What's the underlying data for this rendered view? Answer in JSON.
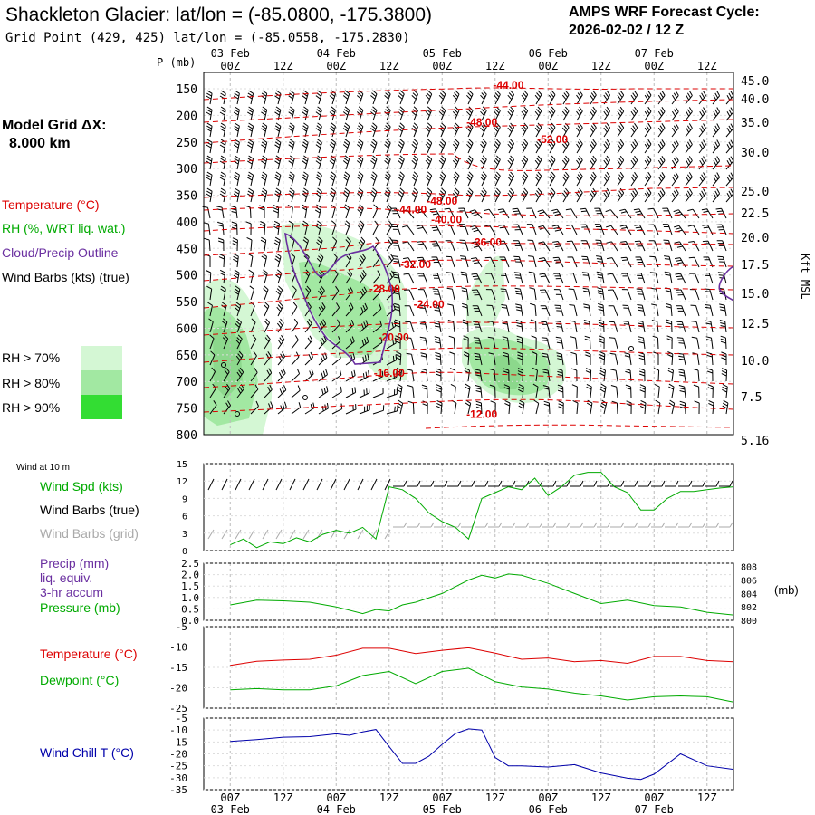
{
  "header": {
    "title": "Shackleton Glacier:  lat/lon = (-85.0800, -175.3800)",
    "grid_point": "Grid Point (429, 425) lat/lon = (-85.0558, -175.2830)",
    "cycle_line1": "AMPS WRF Forecast Cycle:",
    "cycle_line2": "2026-02-02 / 12  Z"
  },
  "time_axis": {
    "ticks": [
      "00Z",
      "12Z",
      "00Z",
      "12Z",
      "00Z",
      "12Z",
      "00Z",
      "12Z",
      "00Z",
      "12Z"
    ],
    "dates": [
      "03 Feb",
      "04 Feb",
      "05 Feb",
      "06 Feb",
      "07 Feb"
    ]
  },
  "legend": {
    "model_grid_label": "Model Grid ΔX:",
    "model_grid_value": "8.000 km",
    "temperature": "Temperature (°C)",
    "rh": "RH (%, WRT liq. wat.)",
    "cloud": "Cloud/Precip Outline",
    "barbs": "Wind Barbs (kts) (true)",
    "rh70": "RH > 70%",
    "rh80": "RH > 80%",
    "rh90": "RH > 90%",
    "colors": {
      "temp": "#dd0000",
      "rh": "#00aa00",
      "cloud": "#6a2fa0",
      "text": "#000000",
      "rh70": "#d4f7d4",
      "rh80": "#a2e8a2",
      "rh90": "#33dd33",
      "precip": "#6a2fa0",
      "windchill": "#0000aa",
      "grid_barb": "#aaaaaa"
    }
  },
  "chart_data": [
    {
      "type": "area",
      "name": "cross-section",
      "p_label": "P (mb)",
      "pressure_ticks": [
        150,
        200,
        250,
        300,
        350,
        400,
        450,
        500,
        550,
        600,
        650,
        700,
        750,
        800
      ],
      "height_label": "Kft MSL",
      "height_ticks": [
        "45.0",
        "40.0",
        "35.0",
        "30.0",
        "25.0",
        "22.5",
        "20.0",
        "17.5",
        "15.0",
        "12.5",
        "10.0",
        "7.5",
        "5.16"
      ],
      "temp_contour_labels": [
        {
          "label": "-44.00",
          "t": 63,
          "p": 143
        },
        {
          "label": "-48.00",
          "t": 57,
          "p": 213
        },
        {
          "label": "-52.00",
          "t": 73,
          "p": 245
        },
        {
          "label": "-48.00",
          "t": 48,
          "p": 361
        },
        {
          "label": "-44.00",
          "t": 41,
          "p": 377
        },
        {
          "label": "-40.00",
          "t": 49,
          "p": 396
        },
        {
          "label": "-36.00",
          "t": 58,
          "p": 438
        },
        {
          "label": "-32.00",
          "t": 42,
          "p": 480
        },
        {
          "label": "-28.00",
          "t": 35,
          "p": 526
        },
        {
          "label": "-24.00",
          "t": 45,
          "p": 555
        },
        {
          "label": "-20.00",
          "t": 37,
          "p": 617
        },
        {
          "label": "-16.00",
          "t": 36,
          "p": 684
        },
        {
          "label": "-12.00",
          "t": 57,
          "p": 762
        }
      ]
    },
    {
      "type": "line",
      "name": "wind",
      "title": "Wind at 10 m",
      "series_labels": {
        "speed": "Wind Spd (kts)",
        "barbs_true": "Wind Barbs (true)",
        "barbs_grid": "Wind Barbs (grid)"
      },
      "y_ticks": [
        0,
        3,
        6,
        9,
        12,
        15
      ],
      "ylim": [
        0,
        15
      ],
      "x": [
        0,
        3,
        6,
        9,
        12,
        15,
        18,
        21,
        24,
        27,
        30,
        33,
        36,
        39,
        42,
        45,
        48,
        51,
        54,
        57,
        60,
        63,
        66,
        69,
        72,
        75,
        78,
        81,
        84,
        87,
        90,
        93,
        96,
        99,
        102,
        105,
        108,
        111,
        114
      ],
      "wind_speed": [
        1,
        2,
        0.5,
        1.5,
        1.2,
        2.2,
        1.5,
        2.8,
        3.5,
        3,
        4,
        2,
        11,
        10.5,
        9,
        6.5,
        5,
        4,
        2,
        9,
        10,
        11,
        10.5,
        12.5,
        9.5,
        11,
        13,
        13.5,
        13.5,
        11,
        10,
        7,
        7,
        9,
        10.2,
        10.2,
        10.5,
        10.8,
        11
      ]
    },
    {
      "type": "line",
      "name": "precip-pressure",
      "series_labels": {
        "precip": "Precip (mm)",
        "liq": "liq. equiv.",
        "accum": "3-hr accum",
        "pressure": "Pressure (mb)"
      },
      "unit_label": "(mb)",
      "precip_ticks": [
        "0.0",
        "0.5",
        "1.0",
        "1.5",
        "2.0",
        "2.5"
      ],
      "pressure_ticks": [
        "800",
        "802",
        "804",
        "806",
        "808"
      ],
      "ylim_precip": [
        0,
        2.5
      ],
      "ylim_pressure": [
        800,
        808.5
      ],
      "x": [
        0,
        6,
        12,
        18,
        24,
        30,
        33,
        36,
        39,
        42,
        48,
        54,
        57,
        60,
        63,
        66,
        72,
        78,
        84,
        90,
        96,
        102,
        108,
        114
      ],
      "pressure": [
        802.3,
        803,
        802.9,
        802.7,
        802,
        801,
        801.6,
        801.4,
        802.3,
        802.7,
        804,
        806,
        806.7,
        806.3,
        806.9,
        806.7,
        805.5,
        804,
        802.5,
        803,
        802.2,
        802,
        801.2,
        800.8
      ]
    },
    {
      "type": "line",
      "name": "temperature-dewpoint",
      "series_labels": {
        "temp": "Temperature (°C)",
        "dew": "Dewpoint (°C)"
      },
      "y_ticks": [
        "-5",
        "-10",
        "-15",
        "-20",
        "-25"
      ],
      "ylim": [
        -25,
        -5
      ],
      "x": [
        0,
        6,
        12,
        18,
        24,
        30,
        36,
        42,
        48,
        54,
        60,
        66,
        72,
        78,
        84,
        90,
        96,
        102,
        108,
        114
      ],
      "temperature": [
        -14.5,
        -13.5,
        -13.2,
        -13.0,
        -12.0,
        -10.3,
        -10.3,
        -11.6,
        -10.8,
        -10.2,
        -11.5,
        -13.0,
        -12.7,
        -13.6,
        -13.3,
        -14.0,
        -12.3,
        -12.3,
        -13.3,
        -13.6
      ],
      "dewpoint": [
        -20.5,
        -20.2,
        -20.5,
        -20.5,
        -19.5,
        -17.0,
        -16.0,
        -19.0,
        -16.0,
        -15.2,
        -18.5,
        -19.8,
        -20.3,
        -21.3,
        -22.0,
        -23.0,
        -22.2,
        -22.0,
        -22.2,
        -23.5
      ]
    },
    {
      "type": "line",
      "name": "wind-chill",
      "series_labels": {
        "windchill": "Wind Chill T (°C)"
      },
      "y_ticks": [
        "-5",
        "-10",
        "-15",
        "-20",
        "-25",
        "-30",
        "-35"
      ],
      "ylim": [
        -35,
        -5
      ],
      "x": [
        0,
        6,
        12,
        18,
        24,
        27,
        30,
        33,
        36,
        39,
        42,
        45,
        48,
        51,
        54,
        57,
        60,
        63,
        66,
        72,
        78,
        84,
        90,
        93,
        96,
        102,
        108,
        114
      ],
      "windchill": [
        -14.8,
        -14.0,
        -13.0,
        -12.8,
        -11.6,
        -12.2,
        -10.8,
        -9.8,
        -17.0,
        -24.0,
        -24.0,
        -21.0,
        -16.0,
        -11.5,
        -9.5,
        -10.0,
        -21.5,
        -25.0,
        -25.0,
        -25.5,
        -24.5,
        -28.0,
        -30.2,
        -30.7,
        -28.5,
        -20.0,
        -25.0,
        -26.5
      ]
    }
  ]
}
